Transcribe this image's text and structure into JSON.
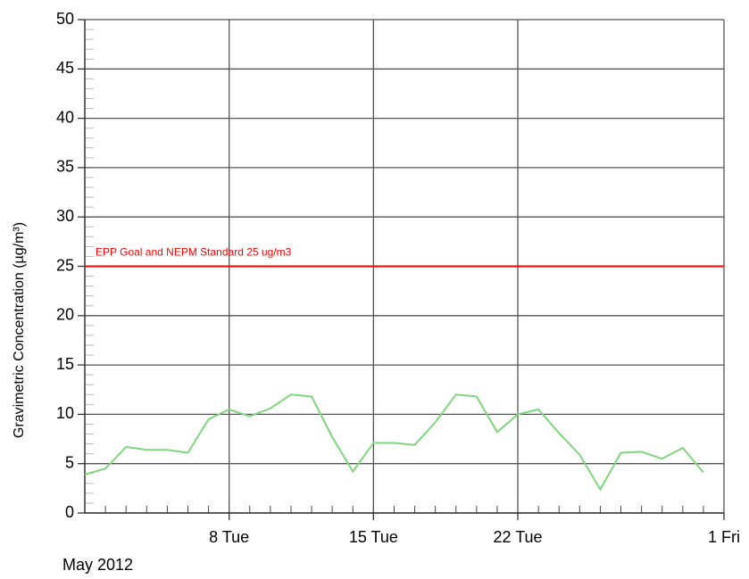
{
  "chart_data": {
    "type": "line",
    "y_label": "Gravimetric Concentration (µg/m³)",
    "x_period_label": "May 2012",
    "x": [
      1,
      2,
      3,
      4,
      5,
      6,
      7,
      8,
      9,
      10,
      11,
      12,
      13,
      14,
      15,
      16,
      17,
      18,
      19,
      20,
      21,
      22,
      23,
      24,
      25,
      26,
      27,
      28,
      29,
      30,
      31
    ],
    "series": [
      {
        "color": "#7fd67f",
        "values": [
          3.9,
          4.5,
          6.7,
          6.4,
          6.4,
          6.1,
          9.5,
          10.5,
          9.8,
          10.6,
          12.0,
          11.8,
          7.7,
          4.2,
          7.1,
          7.1,
          6.9,
          9.2,
          12.0,
          11.8,
          8.2,
          10.0,
          10.5,
          8.1,
          5.9,
          2.4,
          6.1,
          6.2,
          5.5,
          6.6,
          4.1
        ]
      }
    ],
    "xlim": [
      1,
      32
    ],
    "xticks": [
      {
        "value": 8,
        "label": "8 Tue"
      },
      {
        "value": 15,
        "label": "15 Tue"
      },
      {
        "value": 22,
        "label": "22 Tue"
      },
      {
        "value": 32,
        "label": "1 Fri"
      }
    ],
    "ylim": [
      0,
      50
    ],
    "yticks": [
      0,
      5,
      10,
      15,
      20,
      25,
      30,
      35,
      40,
      45,
      50
    ],
    "grid": true,
    "reference_lines": [
      {
        "value": 25,
        "label": "EPP Goal and NEPM Standard 25 ug/m3",
        "color": "#ff0000"
      }
    ]
  }
}
